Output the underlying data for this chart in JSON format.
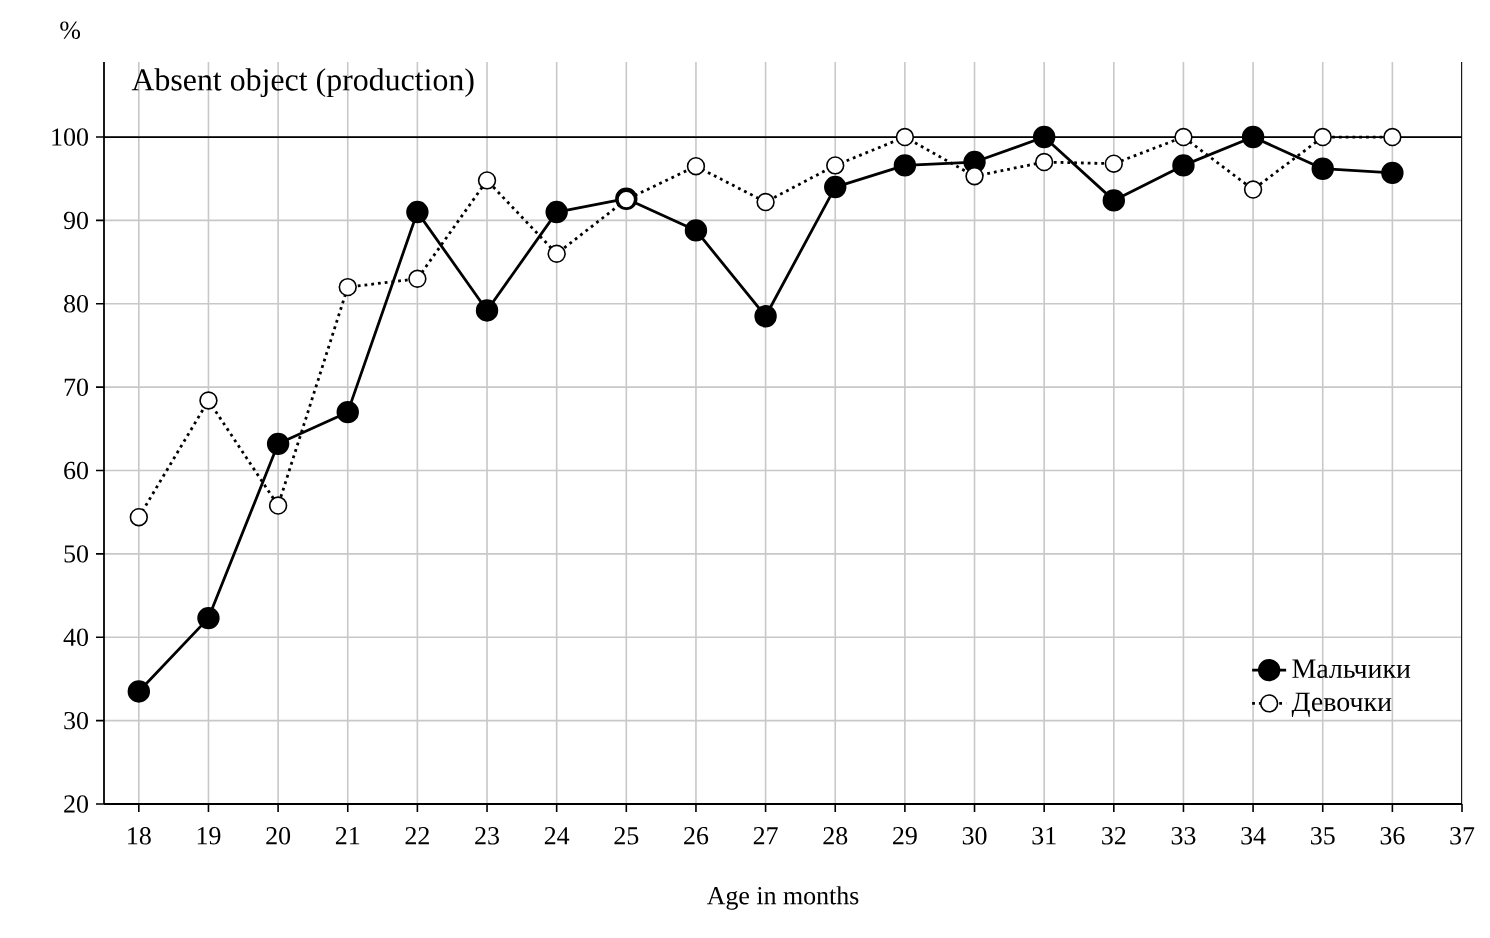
{
  "chart_data": {
    "type": "line",
    "title": "Absent object (production)",
    "xlabel": "Age in months",
    "ylabel": "%",
    "x": [
      18,
      19,
      20,
      21,
      22,
      23,
      24,
      25,
      26,
      27,
      28,
      29,
      30,
      31,
      32,
      33,
      34,
      35,
      36
    ],
    "series": [
      {
        "name": "Мальчики",
        "color": "#000000",
        "line_style": "solid",
        "values": [
          33.5,
          42.3,
          63.2,
          67,
          91,
          79.2,
          91,
          92.6,
          88.8,
          78.5,
          94,
          96.6,
          97,
          100,
          92.4,
          96.6,
          100,
          96.2,
          95.7
        ]
      },
      {
        "name": "Девочки",
        "color": "#000000",
        "line_style": "dotted",
        "values": [
          54.4,
          68.4,
          55.8,
          82,
          83,
          94.8,
          86,
          92.5,
          96.5,
          92.2,
          96.6,
          100,
          95.3,
          97,
          96.8,
          100,
          93.7,
          100,
          100
        ]
      }
    ],
    "xlim": [
      17.5,
      37
    ],
    "xticks": [
      18,
      19,
      20,
      21,
      22,
      23,
      24,
      25,
      26,
      27,
      28,
      29,
      30,
      31,
      32,
      33,
      34,
      35,
      36,
      37
    ],
    "ylim": [
      20,
      109
    ],
    "yticks": [
      20,
      30,
      40,
      50,
      60,
      70,
      80,
      90,
      100
    ],
    "ref_lines": [
      {
        "axis": "y",
        "value": 100,
        "color": "#000000"
      }
    ],
    "grid": true,
    "legend": "bottom right",
    "marker": "circle"
  }
}
